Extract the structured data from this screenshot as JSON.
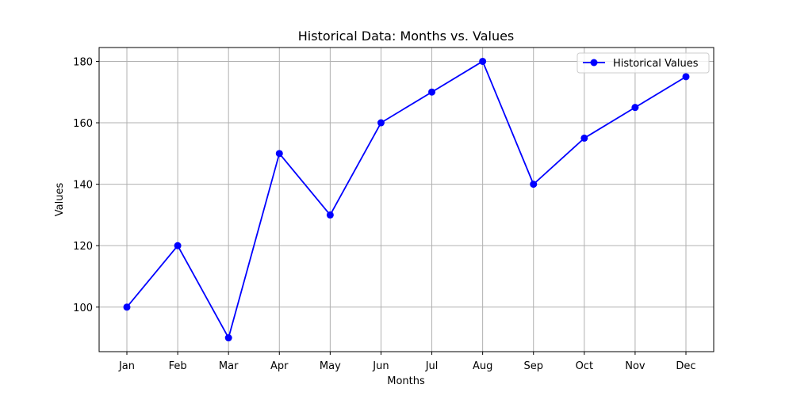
{
  "chart_data": {
    "type": "line",
    "title": "Historical Data: Months vs. Values",
    "xlabel": "Months",
    "ylabel": "Values",
    "categories": [
      "Jan",
      "Feb",
      "Mar",
      "Apr",
      "May",
      "Jun",
      "Jul",
      "Aug",
      "Sep",
      "Oct",
      "Nov",
      "Dec"
    ],
    "series": [
      {
        "name": "Historical Values",
        "color": "#0000ff",
        "marker": "circle",
        "values": [
          100,
          120,
          90,
          150,
          130,
          160,
          170,
          180,
          140,
          155,
          165,
          175
        ]
      }
    ],
    "ylim": [
      85.5,
      184.5
    ],
    "yticks": [
      100,
      120,
      140,
      160,
      180
    ],
    "ytick_labels": [
      "100",
      "120",
      "140",
      "160",
      "180"
    ],
    "grid": true,
    "grid_color": "#b0b0b0",
    "legend_position": "top-right"
  }
}
